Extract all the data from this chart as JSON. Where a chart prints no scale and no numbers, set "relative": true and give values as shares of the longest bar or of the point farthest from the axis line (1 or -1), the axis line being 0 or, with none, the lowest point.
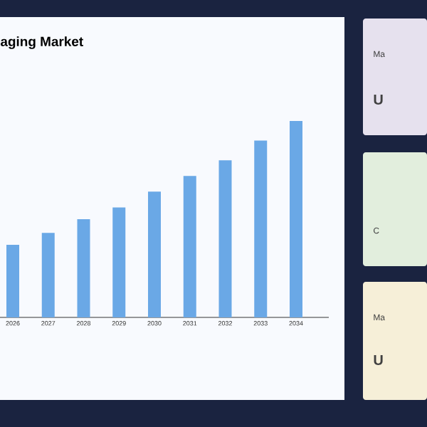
{
  "chart_data": {
    "type": "bar",
    "title": "aging Market",
    "relative": true,
    "color": "#6aa8e6",
    "categories": [
      "2026",
      "2027",
      "2028",
      "2029",
      "2030",
      "2031",
      "2032",
      "2033",
      "2034"
    ],
    "values": [
      0.37,
      0.43,
      0.5,
      0.56,
      0.64,
      0.72,
      0.8,
      0.9,
      1
    ],
    "annotations": [
      "Ma",
      "U",
      "C",
      "Ma",
      "U"
    ]
  }
}
